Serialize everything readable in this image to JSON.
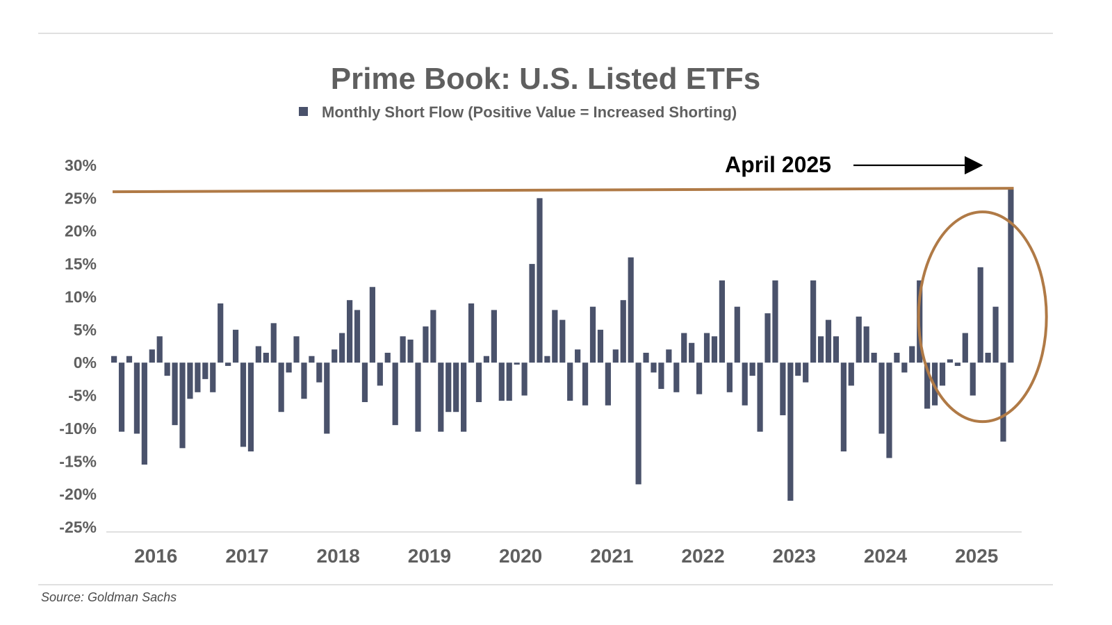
{
  "chart_data": {
    "type": "bar",
    "title": "Prime Book: U.S. Listed ETFs",
    "legend": {
      "label": "Monthly Short Flow (Positive Value = Increased Shorting)",
      "placement": "top-center"
    },
    "series": [
      {
        "name": "Monthly Short Flow (Positive Value = Increased Shorting)",
        "values": [
          1.0,
          -10.5,
          1.0,
          -10.8,
          -15.5,
          2.0,
          4.0,
          -2.0,
          -9.5,
          -13.0,
          -5.5,
          -4.5,
          -2.5,
          -4.5,
          9.0,
          -0.5,
          5.0,
          -12.8,
          -13.5,
          2.5,
          1.5,
          6.0,
          -7.5,
          -1.5,
          4.0,
          -5.5,
          1.0,
          -3.0,
          -10.8,
          2.0,
          4.5,
          9.5,
          8.0,
          -6.0,
          11.5,
          -3.5,
          1.5,
          -9.5,
          4.0,
          3.5,
          -10.5,
          5.5,
          8.0,
          -10.5,
          -7.5,
          -7.5,
          -10.5,
          9.0,
          -6.0,
          1.0,
          8.0,
          -5.8,
          -5.8,
          -0.3,
          -5.0,
          15.0,
          25.0,
          1.0,
          8.0,
          6.5,
          -5.8,
          2.0,
          -6.5,
          8.5,
          5.0,
          -6.5,
          2.0,
          9.5,
          16.0,
          -18.5,
          1.5,
          -1.5,
          -4.0,
          2.0,
          -4.5,
          4.5,
          3.0,
          -4.8,
          4.5,
          4.0,
          12.5,
          -4.5,
          8.5,
          -6.5,
          -2.0,
          -10.5,
          7.5,
          12.5,
          -8.0,
          -21.0,
          -2.0,
          -3.0,
          12.5,
          4.0,
          6.5,
          4.0,
          -13.5,
          -3.5,
          7.0,
          5.5,
          1.5,
          -10.8,
          -14.5,
          1.5,
          -1.5,
          2.5,
          12.5,
          -7.0,
          -6.5,
          -3.5,
          0.5,
          -0.5,
          4.5,
          -5.0,
          14.5,
          1.5,
          8.5,
          -12.0,
          26.5
        ]
      }
    ],
    "x_tick_labels": [
      "2016",
      "2017",
      "2018",
      "2019",
      "2020",
      "2021",
      "2022",
      "2023",
      "2024",
      "2025"
    ],
    "y_tick_labels": [
      "30%",
      "25%",
      "20%",
      "15%",
      "10%",
      "5%",
      "0%",
      "-5%",
      "-10%",
      "-15%",
      "-20%",
      "-25%"
    ],
    "ylim": [
      -25,
      30
    ],
    "grid": false,
    "annotations": [
      {
        "text": "April 2025",
        "arrow": true
      },
      {
        "reference_line_value": 26.5
      }
    ],
    "source": "Source: Goldman Sachs",
    "colors": {
      "bar": "#4a526b",
      "highlight": "#b07a46",
      "text": "#5f5f5f"
    }
  }
}
